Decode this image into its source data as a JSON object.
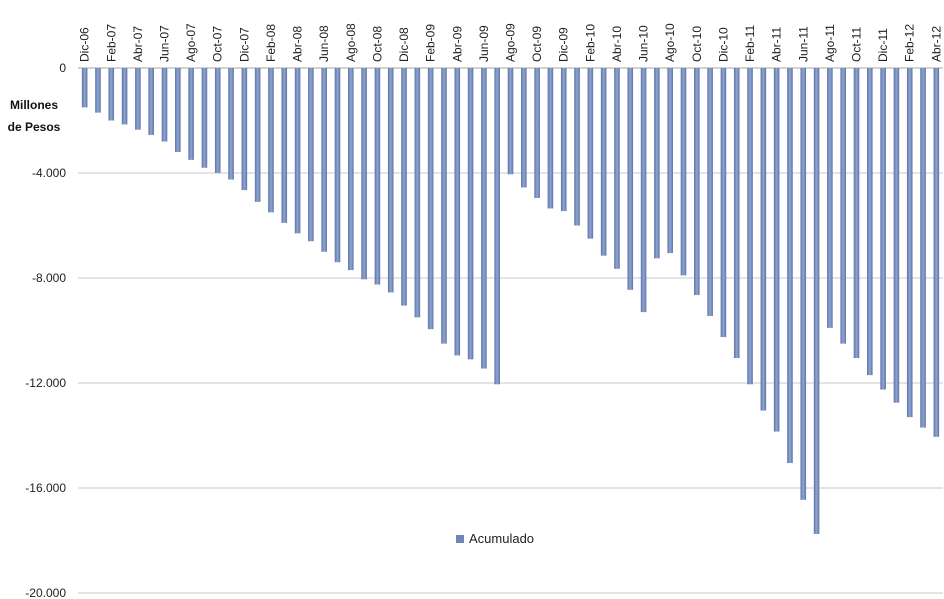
{
  "chart_data": {
    "type": "bar",
    "title": "",
    "xlabel": "",
    "ylabel_lines": [
      "Millones",
      "de Pesos"
    ],
    "ylim": [
      -20000,
      0
    ],
    "yticks": [
      0,
      -4000,
      -8000,
      -12000,
      -16000,
      -20000
    ],
    "ytick_labels": [
      "0",
      "-4.000",
      "-8.000",
      "-12.000",
      "-16.000",
      "-20.000"
    ],
    "grid": true,
    "legend_position": "bottom-center",
    "bar_color": "#6f86b6",
    "categories": [
      "Dic-06",
      "Ene-07",
      "Feb-07",
      "Mar-07",
      "Abr-07",
      "May-07",
      "Jun-07",
      "Jul-07",
      "Ago-07",
      "Sep-07",
      "Oct-07",
      "Nov-07",
      "Dic-07",
      "Ene-08",
      "Feb-08",
      "Mar-08",
      "Abr-08",
      "May-08",
      "Jun-08",
      "Jul-08",
      "Ago-08",
      "Sep-08",
      "Oct-08",
      "Nov-08",
      "Dic-08",
      "Ene-09",
      "Feb-09",
      "Mar-09",
      "Abr-09",
      "May-09",
      "Jun-09",
      "Jul-09",
      "Ago-09",
      "Sep-09",
      "Oct-09",
      "Nov-09",
      "Dic-09",
      "Ene-10",
      "Feb-10",
      "Mar-10",
      "Abr-10",
      "May-10",
      "Jun-10",
      "Jul-10",
      "Ago-10",
      "Sep-10",
      "Oct-10",
      "Nov-10",
      "Dic-10",
      "Ene-11",
      "Feb-11",
      "Mar-11",
      "Abr-11",
      "May-11",
      "Jun-11",
      "Jul-11",
      "Ago-11",
      "Sep-11",
      "Oct-11",
      "Nov-11",
      "Dic-11",
      "Ene-12",
      "Feb-12",
      "Mar-12",
      "Abr-12"
    ],
    "visible_tick_labels": [
      "Dic-06",
      "Feb-07",
      "Abr-07",
      "Jun-07",
      "Ago-07",
      "Oct-07",
      "Dic-07",
      "Feb-08",
      "Abr-08",
      "Jun-08",
      "Ago-08",
      "Oct-08",
      "Dic-08",
      "Feb-09",
      "Abr-09",
      "Jun-09",
      "Ago-09",
      "Oct-09",
      "Dic-09",
      "Feb-10",
      "Abr-10",
      "Jun-10",
      "Ago-10",
      "Oct-10",
      "Dic-10",
      "Feb-11",
      "Abr-11",
      "Jun-11",
      "Ago-11",
      "Oct-11",
      "Dic-11",
      "Feb-12",
      "Abr-12"
    ],
    "series": [
      {
        "name": "Acumulado",
        "values": [
          -1500,
          -1700,
          -2000,
          -2150,
          -2350,
          -2550,
          -2800,
          -3200,
          -3500,
          -3800,
          -4000,
          -4250,
          -4650,
          -5100,
          -5500,
          -5900,
          -6300,
          -6600,
          -7000,
          -7400,
          -7700,
          -8050,
          -8250,
          -8550,
          -9050,
          -9500,
          -9950,
          -10500,
          -10950,
          -11100,
          -11450,
          -12050,
          -4050,
          -4550,
          -4950,
          -5350,
          -5450,
          -6000,
          -6500,
          -7150,
          -7650,
          -8450,
          -9300,
          -7250,
          -7050,
          -7900,
          -8650,
          -9450,
          -10250,
          -11050,
          -12050,
          -13050,
          -13850,
          -15050,
          -16450,
          -17750,
          -9900,
          -10500,
          -11050,
          -11700,
          -12250,
          -12750,
          -13300,
          -13700,
          -14050
        ]
      }
    ]
  }
}
